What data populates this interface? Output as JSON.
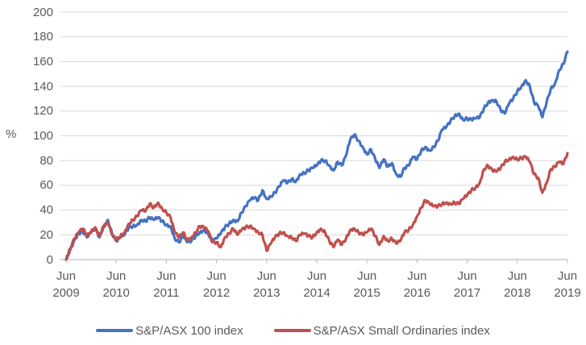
{
  "chart_data": {
    "type": "line",
    "title": "",
    "ylabel": "%",
    "ylim": [
      0,
      200
    ],
    "yticks": [
      0,
      20,
      40,
      60,
      80,
      100,
      120,
      140,
      160,
      180,
      200
    ],
    "grid": "horizontal",
    "legend_position": "bottom",
    "x_frequency": "monthly",
    "x_range": "Jun 2009 to Jun 2019",
    "x_ticks": [
      {
        "month": "Jun",
        "year": "2009"
      },
      {
        "month": "Jun",
        "year": "2010"
      },
      {
        "month": "Jun",
        "year": "2011"
      },
      {
        "month": "Jun",
        "year": "2012"
      },
      {
        "month": "Jun",
        "year": "2013"
      },
      {
        "month": "Jun",
        "year": "2014"
      },
      {
        "month": "Jun",
        "year": "2015"
      },
      {
        "month": "Jun",
        "year": "2016"
      },
      {
        "month": "Jun",
        "year": "2017"
      },
      {
        "month": "Jun",
        "year": "2018"
      },
      {
        "month": "Jun",
        "year": "2019"
      }
    ],
    "series": [
      {
        "name": "S&P/ASX 100 index",
        "color": "#4472C4",
        "values": [
          0,
          8,
          16,
          21,
          23,
          18,
          22,
          25,
          18,
          27,
          32,
          21,
          15,
          18,
          20,
          26,
          27,
          28,
          32,
          31,
          34,
          32,
          34,
          31,
          28,
          27,
          17,
          14,
          19,
          14,
          15,
          19,
          22,
          24,
          21,
          15,
          17,
          21,
          26,
          29,
          32,
          31,
          38,
          43,
          48,
          50,
          48,
          56,
          49,
          51,
          54,
          59,
          64,
          62,
          65,
          63,
          69,
          70,
          72,
          74,
          76,
          80,
          80,
          76,
          72,
          79,
          76,
          84,
          97,
          101,
          96,
          91,
          85,
          89,
          81,
          74,
          81,
          75,
          78,
          69,
          67,
          74,
          76,
          83,
          81,
          88,
          91,
          88,
          91,
          96,
          105,
          107,
          112,
          116,
          118,
          113,
          114,
          113,
          114,
          115,
          122,
          127,
          129,
          128,
          121,
          118,
          126,
          130,
          136,
          140,
          145,
          140,
          127,
          124,
          115,
          127,
          138,
          142,
          153,
          158,
          168
        ]
      },
      {
        "name": "S&P/ASX Small Ordinaries index",
        "color": "#C0504D",
        "values": [
          0,
          9,
          17,
          22,
          25,
          19,
          23,
          26,
          19,
          27,
          30,
          20,
          16,
          19,
          22,
          29,
          32,
          35,
          40,
          39,
          45,
          42,
          46,
          41,
          38,
          34,
          22,
          18,
          22,
          16,
          18,
          22,
          27,
          26,
          23,
          14,
          14,
          10,
          18,
          21,
          25,
          20,
          24,
          26,
          27,
          25,
          22,
          20,
          7,
          13,
          18,
          21,
          22,
          19,
          18,
          15,
          20,
          21,
          19,
          18,
          22,
          25,
          22,
          15,
          10,
          16,
          12,
          17,
          24,
          25,
          22,
          20,
          22,
          25,
          19,
          12,
          19,
          15,
          17,
          13,
          15,
          22,
          24,
          28,
          35,
          42,
          48,
          45,
          43,
          43,
          45,
          46,
          45,
          46,
          45,
          49,
          52,
          56,
          58,
          62,
          73,
          76,
          72,
          71,
          74,
          79,
          81,
          83,
          81,
          82,
          83,
          79,
          69,
          66,
          54,
          62,
          73,
          75,
          79,
          77,
          86
        ]
      }
    ],
    "colors": {
      "gridline": "#D9D9D9",
      "axis_line": "#BFBFBF",
      "tick_label": "#595959"
    }
  }
}
